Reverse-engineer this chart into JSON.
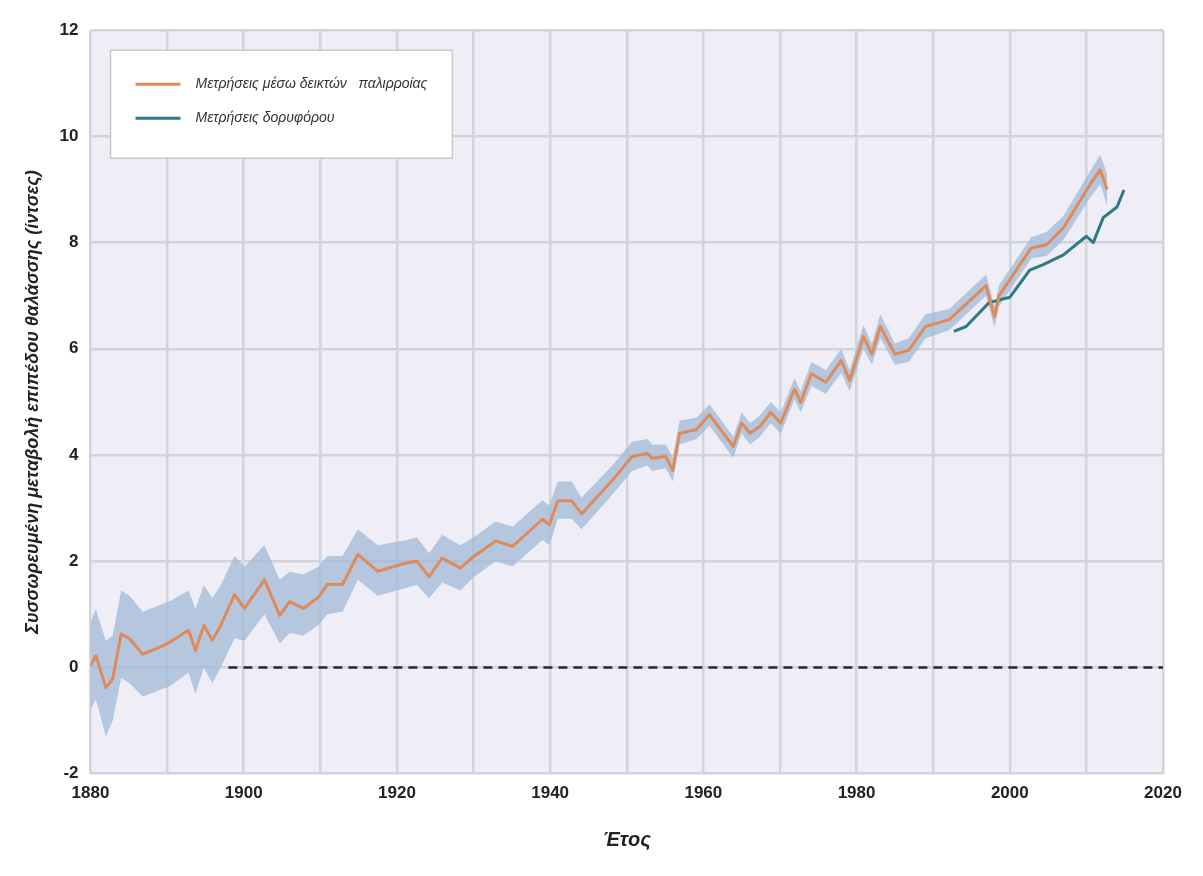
{
  "chart_data": {
    "type": "line",
    "xlabel": "Έτος",
    "ylabel": "Συσσωρευμένη μεταβολή επιπέδου θαλάσσης (ίντσες)",
    "xlim": [
      1880,
      2020
    ],
    "xticks": [
      1880,
      {
        "value": 1890,
        "label": null
      },
      1900,
      {
        "value": 1910,
        "label": null
      },
      1920,
      {
        "value": 1930,
        "label": null
      },
      1940,
      {
        "value": 1950,
        "label": null
      },
      1960,
      {
        "value": 1970,
        "label": null
      },
      1980,
      {
        "value": 1990,
        "label": null
      },
      2000,
      {
        "value": 2010,
        "label": null
      },
      2020
    ],
    "ylim": [
      -2,
      12
    ],
    "yticks": [
      -2,
      0,
      2,
      4,
      6,
      8,
      10,
      12
    ],
    "grid": true,
    "legend": "top left",
    "marker": "none",
    "series": [
      {
        "name": "Μετρήσεις μέσω δεικτών   παλιρροίας",
        "color": "#e08a5a",
        "line_style": "solid",
        "x": [
          1880,
          1880.7,
          1882,
          1882.9,
          1884,
          1885.1,
          1886.8,
          1889.5,
          1890.4,
          1892.8,
          1893.7,
          1894.8,
          1895.9,
          1897,
          1898.8,
          1900.1,
          1902.7,
          1904.7,
          1906,
          1907.8,
          1909.8,
          1910.9,
          1912.9,
          1914.9,
          1917.5,
          1921.3,
          1922.6,
          1924.2,
          1925.9,
          1928.3,
          1930,
          1932.9,
          1935.1,
          1939,
          1939.9,
          1941,
          1942.8,
          1944.1,
          1948.1,
          1950.7,
          1952.7,
          1953.3,
          1955.1,
          1956,
          1956.9,
          1959.1,
          1960.8,
          1963.9,
          1965,
          1966.1,
          1967.4,
          1968.8,
          1970.1,
          1971.9,
          1972.7,
          1974.1,
          1976,
          1978,
          1979.1,
          1980.9,
          1982,
          1983.1,
          1985,
          1986.8,
          1989,
          1992.1,
          1996.9,
          1998,
          1998.6,
          2002.8,
          2004.8,
          2007,
          2010.5,
          2011.8,
          2012.7
        ],
        "values": [
          0.03,
          0.22,
          -0.38,
          -0.22,
          0.63,
          0.54,
          0.25,
          0.41,
          0.48,
          0.7,
          0.32,
          0.79,
          0.51,
          0.79,
          1.37,
          1.11,
          1.65,
          0.98,
          1.24,
          1.11,
          1.33,
          1.56,
          1.56,
          2.13,
          1.81,
          1.97,
          2.0,
          1.71,
          2.06,
          1.87,
          2.09,
          2.38,
          2.28,
          2.79,
          2.69,
          3.14,
          3.14,
          2.89,
          3.52,
          3.97,
          4.03,
          3.94,
          3.97,
          3.71,
          4.41,
          4.48,
          4.76,
          4.16,
          4.6,
          4.41,
          4.54,
          4.8,
          4.6,
          5.24,
          4.99,
          5.53,
          5.37,
          5.78,
          5.4,
          6.23,
          5.9,
          6.42,
          5.9,
          5.97,
          6.42,
          6.55,
          7.19,
          6.6,
          7.0,
          7.9,
          7.96,
          8.28,
          9.1,
          9.37,
          9.0
        ],
        "lower": [
          -0.8,
          -0.6,
          -1.3,
          -1.0,
          -0.2,
          -0.3,
          -0.55,
          -0.4,
          -0.35,
          -0.1,
          -0.5,
          0.0,
          -0.3,
          0.0,
          0.55,
          0.5,
          1.0,
          0.45,
          0.65,
          0.6,
          0.8,
          1.0,
          1.05,
          1.65,
          1.35,
          1.5,
          1.55,
          1.3,
          1.6,
          1.45,
          1.7,
          2.0,
          1.9,
          2.4,
          2.3,
          2.8,
          2.8,
          2.6,
          3.25,
          3.7,
          3.8,
          3.7,
          3.75,
          3.5,
          4.2,
          4.3,
          4.55,
          3.95,
          4.4,
          4.2,
          4.35,
          4.6,
          4.4,
          5.05,
          4.8,
          5.3,
          5.15,
          5.55,
          5.2,
          6.0,
          5.7,
          6.2,
          5.7,
          5.75,
          6.2,
          6.35,
          7.0,
          6.4,
          6.8,
          7.7,
          7.75,
          8.05,
          8.85,
          9.1,
          8.7
        ],
        "upper": [
          0.85,
          1.1,
          0.5,
          0.6,
          1.45,
          1.35,
          1.05,
          1.2,
          1.25,
          1.45,
          1.1,
          1.55,
          1.3,
          1.55,
          2.1,
          1.9,
          2.3,
          1.65,
          1.8,
          1.75,
          1.9,
          2.1,
          2.1,
          2.6,
          2.3,
          2.4,
          2.45,
          2.15,
          2.5,
          2.3,
          2.45,
          2.75,
          2.65,
          3.15,
          3.05,
          3.5,
          3.5,
          3.2,
          3.8,
          4.25,
          4.3,
          4.2,
          4.2,
          3.95,
          4.65,
          4.7,
          4.95,
          4.35,
          4.8,
          4.6,
          4.75,
          5.0,
          4.8,
          5.45,
          5.2,
          5.75,
          5.6,
          6.0,
          5.6,
          6.45,
          6.1,
          6.65,
          6.1,
          6.2,
          6.65,
          6.75,
          7.4,
          6.8,
          7.2,
          8.1,
          8.2,
          8.5,
          9.35,
          9.65,
          9.3
        ]
      },
      {
        "name": "Μετρήσεις δορυφόρου",
        "color": "#2e7a85",
        "line_style": "solid",
        "x": [
          1992.7,
          1994.3,
          1997.3,
          2000,
          2002.6,
          2004.3,
          2007,
          2010,
          2010.9,
          2012.2,
          2014,
          2014.9
        ],
        "values": [
          6.33,
          6.42,
          6.87,
          6.97,
          7.48,
          7.58,
          7.77,
          8.12,
          8.0,
          8.47,
          8.67,
          8.99
        ]
      },
      {
        "color": "#1c2a48",
        "line_style": "dashed",
        "x": [
          1898,
          2020
        ],
        "values": [
          0,
          0
        ]
      }
    ]
  }
}
